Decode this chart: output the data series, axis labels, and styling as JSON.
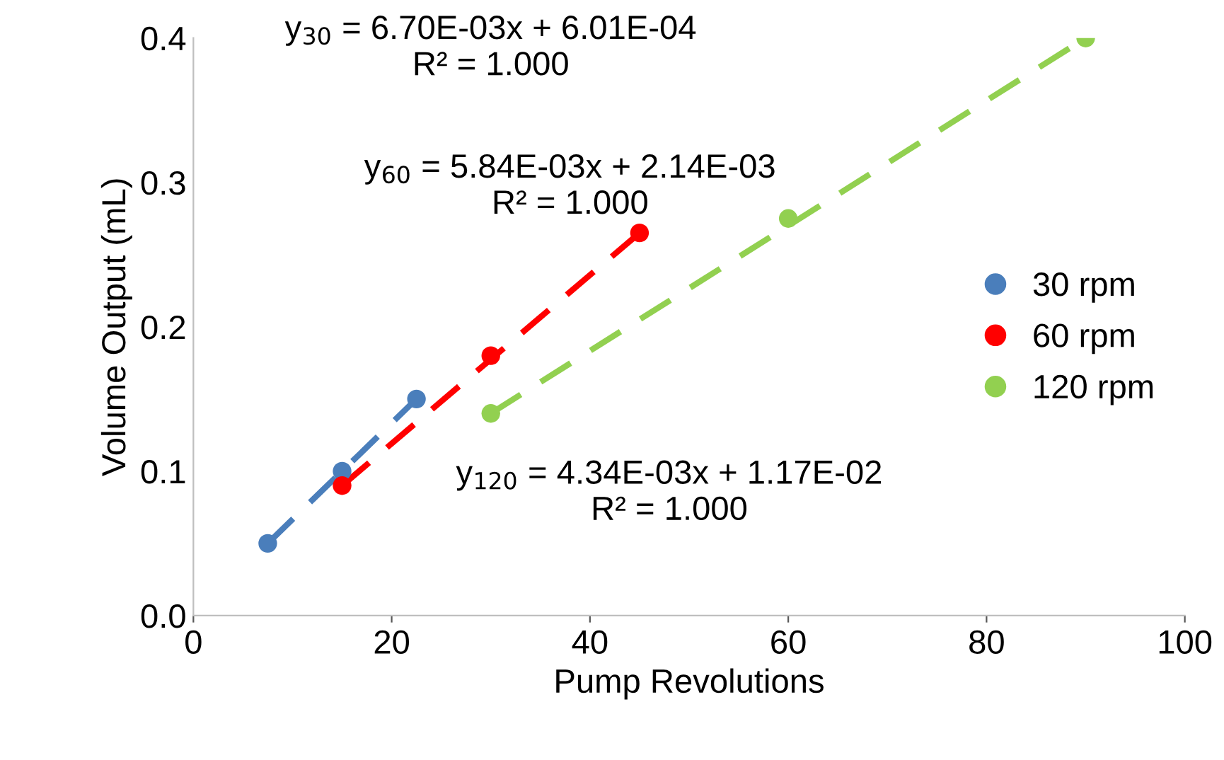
{
  "chart_data": {
    "type": "scatter",
    "xlabel": "Pump Revolutions",
    "ylabel": "Volume Output (mL)",
    "xlim": [
      0,
      100
    ],
    "xticks": [
      0,
      20,
      40,
      60,
      80,
      100
    ],
    "ylim": [
      0,
      0.4
    ],
    "yticks": [
      {
        "value": 0,
        "label": "0.0"
      },
      0.1,
      0.2,
      0.3,
      0.4
    ],
    "grid": false,
    "legend": "right",
    "marker": "circle",
    "series": [
      {
        "name": "30 rpm",
        "color": "#4a7ebb",
        "x": [
          7.5,
          15,
          22.5
        ],
        "values": [
          0.05,
          0.1,
          0.15
        ]
      },
      {
        "name": "60 rpm",
        "color": "#ff0000",
        "x": [
          15,
          30,
          45
        ],
        "values": [
          0.09,
          0.18,
          0.265
        ]
      },
      {
        "name": "120 rpm",
        "color": "#92d050",
        "x": [
          30,
          60,
          90
        ],
        "values": [
          0.14,
          0.275,
          0.4
        ]
      },
      {
        "type": "line",
        "marker": "none",
        "line_style": "dashed",
        "color": "#4a7ebb",
        "x": [
          7.5,
          22.5
        ],
        "values": [
          0.05,
          0.15
        ]
      },
      {
        "type": "line",
        "marker": "none",
        "line_style": "dashed",
        "color": "#ff0000",
        "x": [
          15,
          45
        ],
        "values": [
          0.09,
          0.265
        ]
      },
      {
        "type": "line",
        "marker": "none",
        "line_style": "dashed",
        "color": "#92d050",
        "x": [
          30,
          90
        ],
        "values": [
          0.14,
          0.4
        ]
      }
    ],
    "annotations": [
      "y$_{30}$ = 6.70E-03x + 6.01E-04\nR² = 1.000",
      "y$_{60}$ = 5.84E-03x + 2.14E-03\nR² = 1.000",
      "y$_{120}$ = 4.34E-03x + 1.17E-02\nR² = 1.000"
    ]
  }
}
